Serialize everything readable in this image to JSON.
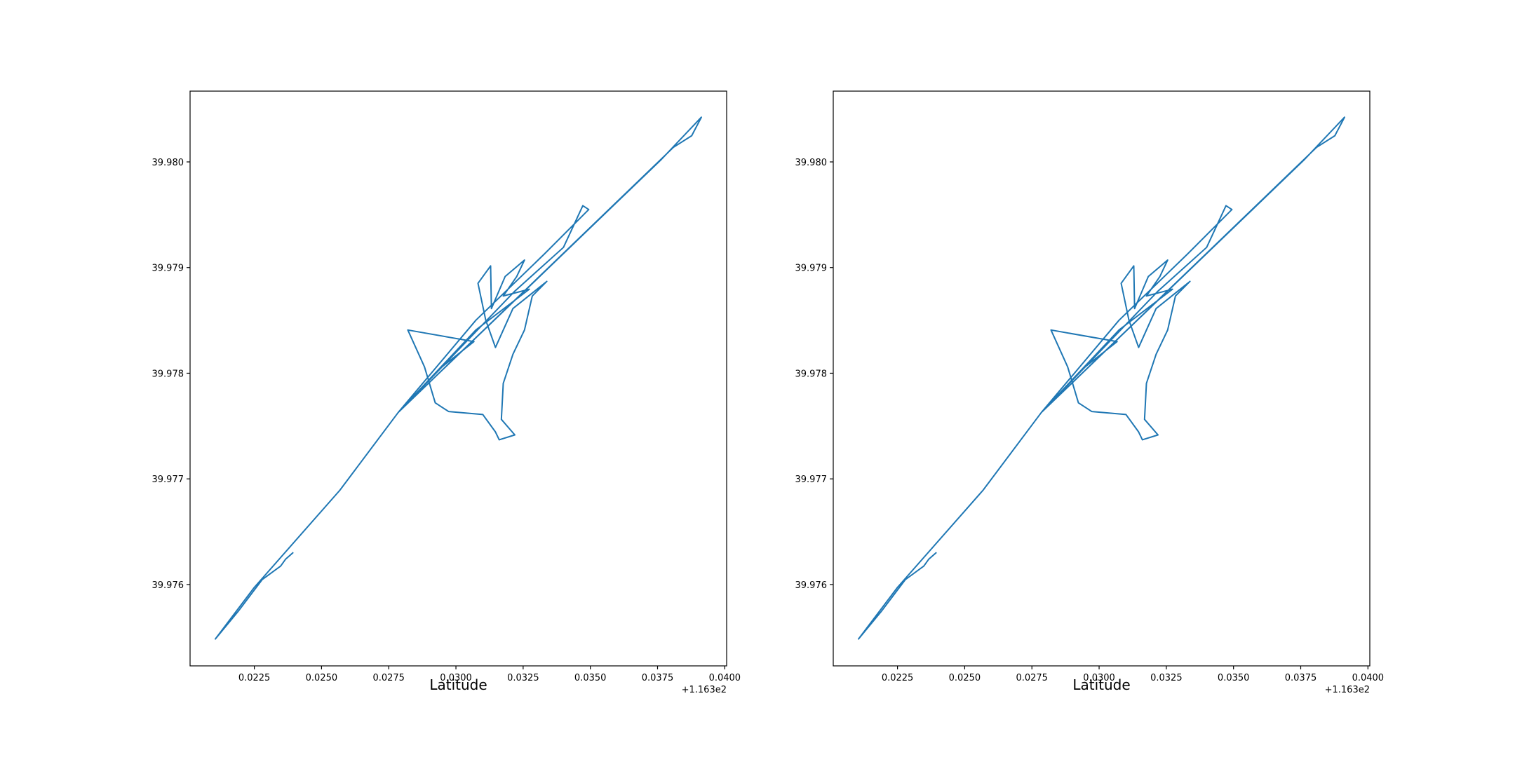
{
  "chart_data": [
    {
      "type": "line",
      "x_label": "Latitude",
      "x_offset_label": "+1.163e2",
      "xlim": [
        0.02011,
        0.04007
      ],
      "ylim": [
        39.97523,
        39.98067
      ],
      "xticks": [
        0.0225,
        {
          "value": 0.025,
          "label": "0.0250"
        },
        0.0275,
        {
          "value": 0.03,
          "label": "0.0300"
        },
        0.0325,
        {
          "value": 0.035,
          "label": "0.0350"
        },
        0.0375,
        {
          "value": 0.04,
          "label": "0.0400"
        }
      ],
      "yticks": [
        39.976,
        39.977,
        39.978,
        39.979,
        {
          "value": 39.98,
          "label": "39.980"
        }
      ],
      "series": [
        {
          "color": "#1f77b4",
          "x": [
            0.02395,
            0.02366,
            0.02348,
            0.02279,
            0.02189,
            0.02105,
            0.0225,
            0.02568,
            0.02785,
            0.02948,
            0.03067,
            0.02821,
            0.02883,
            0.02923,
            0.02973,
            0.031,
            0.03147,
            0.03161,
            0.03219,
            0.03169,
            0.03176,
            0.03212,
            0.03255,
            0.03284,
            0.03338,
            0.03284,
            0.03212,
            0.03147,
            0.03111,
            0.03082,
            0.03129,
            0.03132,
            0.03183,
            0.03255,
            0.03226,
            0.03176,
            0.03273,
            0.03074,
            0.02785,
            0.03219,
            0.034,
            0.03472,
            0.03494,
            0.03328,
            0.03074,
            0.02785,
            0.03762,
            0.03913,
            0.03877,
            0.03809,
            0.02785
          ],
          "values": [
            39.976304,
            39.976239,
            39.976175,
            39.976046,
            39.975743,
            39.975485,
            39.975973,
            39.976892,
            39.977628,
            39.97806,
            39.978299,
            39.978409,
            39.97806,
            39.97772,
            39.977637,
            39.977609,
            39.977444,
            39.97737,
            39.977416,
            39.977563,
            39.977904,
            39.978179,
            39.978409,
            39.978731,
            39.978869,
            39.978759,
            39.978612,
            39.978244,
            39.978501,
            39.978851,
            39.979016,
            39.978612,
            39.978915,
            39.979071,
            39.978915,
            39.978731,
            39.978795,
            39.978409,
            39.977628,
            39.978777,
            39.979191,
            39.979586,
            39.979549,
            39.979126,
            39.978501,
            39.977628,
            39.980018,
            39.980423,
            39.980248,
            39.980138,
            39.977628
          ]
        }
      ]
    },
    {
      "type": "line",
      "x_label": "Latitude",
      "x_offset_label": "+1.163e2",
      "xlim": [
        0.02011,
        0.04007
      ],
      "ylim": [
        39.97523,
        39.98067
      ],
      "xticks": [
        0.0225,
        {
          "value": 0.025,
          "label": "0.0250"
        },
        0.0275,
        {
          "value": 0.03,
          "label": "0.0300"
        },
        0.0325,
        {
          "value": 0.035,
          "label": "0.0350"
        },
        0.0375,
        {
          "value": 0.04,
          "label": "0.0400"
        }
      ],
      "yticks": [
        39.976,
        39.977,
        39.978,
        39.979,
        {
          "value": 39.98,
          "label": "39.980"
        }
      ],
      "series": [
        {
          "color": "#1f77b4",
          "x": [
            0.02395,
            0.02366,
            0.02348,
            0.02279,
            0.02189,
            0.02105,
            0.0225,
            0.02568,
            0.02785,
            0.02948,
            0.03067,
            0.02821,
            0.02883,
            0.02923,
            0.02973,
            0.031,
            0.03147,
            0.03161,
            0.03219,
            0.03169,
            0.03176,
            0.03212,
            0.03255,
            0.03284,
            0.03338,
            0.03284,
            0.03212,
            0.03147,
            0.03111,
            0.03082,
            0.03129,
            0.03132,
            0.03183,
            0.03255,
            0.03226,
            0.03176,
            0.03273,
            0.03074,
            0.02785,
            0.03219,
            0.034,
            0.03472,
            0.03494,
            0.03328,
            0.03074,
            0.02785,
            0.03762,
            0.03913,
            0.03877,
            0.03809,
            0.02785
          ],
          "values": [
            39.976304,
            39.976239,
            39.976175,
            39.976046,
            39.975743,
            39.975485,
            39.975973,
            39.976892,
            39.977628,
            39.97806,
            39.978299,
            39.978409,
            39.97806,
            39.97772,
            39.977637,
            39.977609,
            39.977444,
            39.97737,
            39.977416,
            39.977563,
            39.977904,
            39.978179,
            39.978409,
            39.978731,
            39.978869,
            39.978759,
            39.978612,
            39.978244,
            39.978501,
            39.978851,
            39.979016,
            39.978612,
            39.978915,
            39.979071,
            39.978915,
            39.978731,
            39.978795,
            39.978409,
            39.977628,
            39.978777,
            39.979191,
            39.979586,
            39.979549,
            39.979126,
            39.978501,
            39.977628,
            39.980018,
            39.980423,
            39.980248,
            39.980138,
            39.977628
          ]
        }
      ]
    }
  ]
}
